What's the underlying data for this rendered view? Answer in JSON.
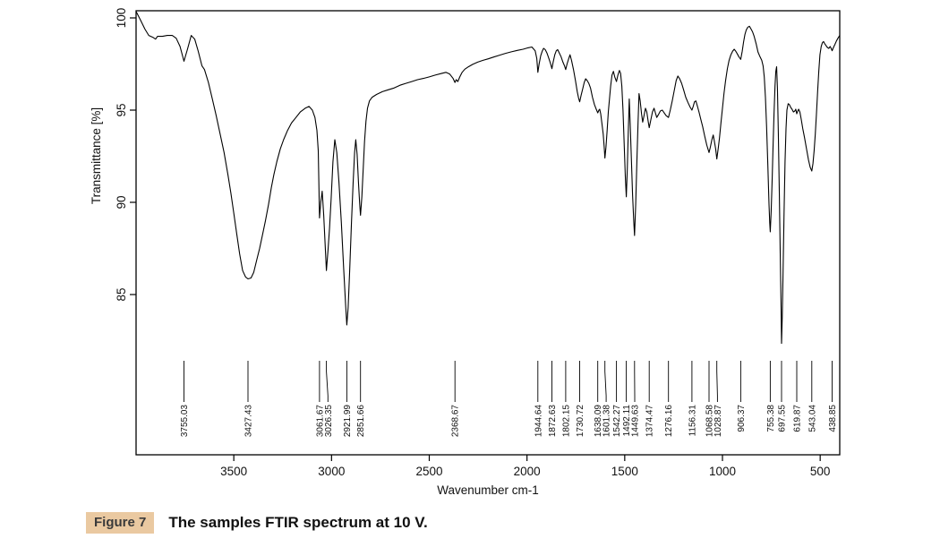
{
  "caption": {
    "figure_label": "Figure 7",
    "text": "The samples FTIR spectrum at 10 V."
  },
  "colors": {
    "line": "#000000",
    "tick_text": "#1a1a1a",
    "caption_badge_bg": "#eac9a1",
    "background": "#ffffff"
  },
  "chart_data": {
    "type": "line",
    "title": "",
    "xlabel": "Wavenumber cm-1",
    "ylabel": "Transmittance [%]",
    "x_ticks": [
      3500,
      3000,
      2500,
      2000,
      1500,
      1000,
      500
    ],
    "y_ticks": [
      85,
      90,
      95,
      100
    ],
    "x_range": [
      4000,
      400
    ],
    "y_range": [
      83,
      100.4
    ],
    "grid": false,
    "legend": "none",
    "peak_labels": [
      "3755.03",
      "3427.43",
      "3061.67",
      "3026.35",
      "2921.99",
      "2851.66",
      "2368.67",
      "1944.64",
      "1872.63",
      "1802.15",
      "1730.72",
      "1638.09",
      "1601.38",
      "1542.27",
      "1492.11",
      "1449.63",
      "1374.47",
      "1276.16",
      "1156.31",
      "1068.58",
      "1028.87",
      "906.37",
      "755.38",
      "697.55",
      "619.87",
      "543.04",
      "438.85"
    ],
    "peaks": [
      3755.03,
      3427.43,
      3061.67,
      3026.35,
      2921.99,
      2851.66,
      2368.67,
      1944.64,
      1872.63,
      1802.15,
      1730.72,
      1638.09,
      1601.38,
      1542.27,
      1492.11,
      1449.63,
      1374.47,
      1276.16,
      1156.31,
      1068.58,
      1028.87,
      906.37,
      755.38,
      697.55,
      619.87,
      543.04,
      438.85
    ],
    "curve": [
      [
        4000,
        100.35
      ],
      [
        3978,
        99.9
      ],
      [
        3955,
        99.4
      ],
      [
        3935,
        99.05
      ],
      [
        3915,
        98.95
      ],
      [
        3900,
        98.85
      ],
      [
        3890,
        99.0
      ],
      [
        3865,
        99.0
      ],
      [
        3840,
        99.05
      ],
      [
        3815,
        99.05
      ],
      [
        3795,
        98.9
      ],
      [
        3775,
        98.45
      ],
      [
        3755.03,
        97.65
      ],
      [
        3737,
        98.3
      ],
      [
        3718,
        99.05
      ],
      [
        3700,
        98.85
      ],
      [
        3682,
        98.2
      ],
      [
        3663,
        97.4
      ],
      [
        3650,
        97.2
      ],
      [
        3630,
        96.5
      ],
      [
        3610,
        95.6
      ],
      [
        3590,
        94.7
      ],
      [
        3570,
        93.7
      ],
      [
        3550,
        92.7
      ],
      [
        3530,
        91.5
      ],
      [
        3515,
        90.5
      ],
      [
        3500,
        89.4
      ],
      [
        3485,
        88.3
      ],
      [
        3470,
        87.2
      ],
      [
        3455,
        86.3
      ],
      [
        3440,
        85.95
      ],
      [
        3427.43,
        85.85
      ],
      [
        3412,
        85.9
      ],
      [
        3398,
        86.2
      ],
      [
        3382,
        86.9
      ],
      [
        3368,
        87.5
      ],
      [
        3352,
        88.3
      ],
      [
        3338,
        89.0
      ],
      [
        3322,
        89.9
      ],
      [
        3308,
        90.8
      ],
      [
        3295,
        91.5
      ],
      [
        3280,
        92.2
      ],
      [
        3262,
        92.9
      ],
      [
        3245,
        93.4
      ],
      [
        3225,
        93.9
      ],
      [
        3205,
        94.3
      ],
      [
        3182,
        94.6
      ],
      [
        3160,
        94.9
      ],
      [
        3135,
        95.1
      ],
      [
        3115,
        95.2
      ],
      [
        3098,
        95.0
      ],
      [
        3085,
        94.6
      ],
      [
        3075,
        93.9
      ],
      [
        3068,
        92.8
      ],
      [
        3061.67,
        89.15
      ],
      [
        3055,
        90.0
      ],
      [
        3048,
        90.6
      ],
      [
        3040,
        89.3
      ],
      [
        3033,
        87.8
      ],
      [
        3026.35,
        86.3
      ],
      [
        3018,
        87.4
      ],
      [
        3010,
        88.6
      ],
      [
        3002,
        90.2
      ],
      [
        2993,
        92.2
      ],
      [
        2983,
        93.4
      ],
      [
        2973,
        92.7
      ],
      [
        2962,
        91.1
      ],
      [
        2950,
        88.9
      ],
      [
        2938,
        86.4
      ],
      [
        2928,
        84.4
      ],
      [
        2921.99,
        83.35
      ],
      [
        2915,
        84.3
      ],
      [
        2907,
        86.3
      ],
      [
        2898,
        88.9
      ],
      [
        2890,
        91.0
      ],
      [
        2882,
        92.7
      ],
      [
        2876,
        93.4
      ],
      [
        2869,
        92.6
      ],
      [
        2862,
        91.0
      ],
      [
        2856,
        89.9
      ],
      [
        2851.66,
        89.3
      ],
      [
        2845,
        90.3
      ],
      [
        2838,
        91.8
      ],
      [
        2831,
        93.3
      ],
      [
        2824,
        94.4
      ],
      [
        2816,
        95.1
      ],
      [
        2806,
        95.5
      ],
      [
        2792,
        95.7
      ],
      [
        2770,
        95.85
      ],
      [
        2740,
        96.0
      ],
      [
        2710,
        96.1
      ],
      [
        2680,
        96.2
      ],
      [
        2650,
        96.35
      ],
      [
        2620,
        96.45
      ],
      [
        2590,
        96.55
      ],
      [
        2560,
        96.65
      ],
      [
        2530,
        96.72
      ],
      [
        2500,
        96.8
      ],
      [
        2470,
        96.9
      ],
      [
        2440,
        96.98
      ],
      [
        2415,
        97.05
      ],
      [
        2395,
        96.95
      ],
      [
        2378,
        96.72
      ],
      [
        2368.67,
        96.5
      ],
      [
        2362,
        96.65
      ],
      [
        2354,
        96.55
      ],
      [
        2344,
        96.8
      ],
      [
        2332,
        97.05
      ],
      [
        2318,
        97.22
      ],
      [
        2300,
        97.35
      ],
      [
        2278,
        97.48
      ],
      [
        2252,
        97.6
      ],
      [
        2225,
        97.7
      ],
      [
        2198,
        97.78
      ],
      [
        2170,
        97.88
      ],
      [
        2140,
        97.98
      ],
      [
        2110,
        98.08
      ],
      [
        2080,
        98.16
      ],
      [
        2050,
        98.24
      ],
      [
        2020,
        98.3
      ],
      [
        1995,
        98.38
      ],
      [
        1975,
        98.42
      ],
      [
        1958,
        98.22
      ],
      [
        1950,
        97.8
      ],
      [
        1944.64,
        97.05
      ],
      [
        1938,
        97.5
      ],
      [
        1930,
        97.95
      ],
      [
        1922,
        98.2
      ],
      [
        1915,
        98.35
      ],
      [
        1907,
        98.28
      ],
      [
        1898,
        98.1
      ],
      [
        1888,
        97.8
      ],
      [
        1879,
        97.5
      ],
      [
        1872.63,
        97.25
      ],
      [
        1866,
        97.6
      ],
      [
        1858,
        98.0
      ],
      [
        1850,
        98.22
      ],
      [
        1843,
        98.28
      ],
      [
        1835,
        98.1
      ],
      [
        1826,
        97.9
      ],
      [
        1816,
        97.6
      ],
      [
        1808,
        97.4
      ],
      [
        1802.15,
        97.2
      ],
      [
        1795,
        97.5
      ],
      [
        1788,
        97.75
      ],
      [
        1780,
        98.0
      ],
      [
        1772,
        97.7
      ],
      [
        1762,
        97.2
      ],
      [
        1752,
        96.6
      ],
      [
        1743,
        96.0
      ],
      [
        1736,
        95.65
      ],
      [
        1730.72,
        95.45
      ],
      [
        1723,
        95.8
      ],
      [
        1715,
        96.15
      ],
      [
        1707,
        96.5
      ],
      [
        1700,
        96.7
      ],
      [
        1692,
        96.6
      ],
      [
        1684,
        96.45
      ],
      [
        1675,
        96.2
      ],
      [
        1665,
        95.7
      ],
      [
        1655,
        95.3
      ],
      [
        1646,
        95.05
      ],
      [
        1638.09,
        94.85
      ],
      [
        1632,
        95.0
      ],
      [
        1628,
        95.05
      ],
      [
        1623,
        94.8
      ],
      [
        1617,
        94.3
      ],
      [
        1610,
        93.7
      ],
      [
        1605,
        93.0
      ],
      [
        1601.38,
        92.4
      ],
      [
        1596,
        93.0
      ],
      [
        1590,
        93.9
      ],
      [
        1584,
        94.9
      ],
      [
        1578,
        95.6
      ],
      [
        1572,
        96.3
      ],
      [
        1565,
        96.9
      ],
      [
        1558,
        97.1
      ],
      [
        1551,
        96.8
      ],
      [
        1542.27,
        96.55
      ],
      [
        1535,
        96.9
      ],
      [
        1527,
        97.15
      ],
      [
        1521,
        97.0
      ],
      [
        1515,
        96.3
      ],
      [
        1509,
        95.0
      ],
      [
        1503,
        93.2
      ],
      [
        1497,
        91.4
      ],
      [
        1492.11,
        90.3
      ],
      [
        1487,
        91.8
      ],
      [
        1482,
        93.8
      ],
      [
        1477,
        95.6
      ],
      [
        1472,
        94.3
      ],
      [
        1466,
        92.3
      ],
      [
        1460,
        90.4
      ],
      [
        1454,
        89.0
      ],
      [
        1449.63,
        88.2
      ],
      [
        1444,
        89.9
      ],
      [
        1438,
        92.2
      ],
      [
        1432,
        94.3
      ],
      [
        1427,
        95.9
      ],
      [
        1421,
        95.5
      ],
      [
        1414,
        94.8
      ],
      [
        1408,
        94.35
      ],
      [
        1401,
        94.7
      ],
      [
        1394,
        95.1
      ],
      [
        1387,
        94.9
      ],
      [
        1380,
        94.4
      ],
      [
        1374.47,
        94.05
      ],
      [
        1367,
        94.45
      ],
      [
        1358,
        94.9
      ],
      [
        1350,
        95.1
      ],
      [
        1343,
        94.85
      ],
      [
        1336,
        94.6
      ],
      [
        1328,
        94.75
      ],
      [
        1318,
        94.95
      ],
      [
        1308,
        95.0
      ],
      [
        1298,
        94.85
      ],
      [
        1288,
        94.7
      ],
      [
        1276.16,
        94.6
      ],
      [
        1267,
        95.0
      ],
      [
        1257,
        95.5
      ],
      [
        1246,
        96.1
      ],
      [
        1237,
        96.6
      ],
      [
        1228,
        96.85
      ],
      [
        1219,
        96.7
      ],
      [
        1209,
        96.45
      ],
      [
        1199,
        96.1
      ],
      [
        1188,
        95.7
      ],
      [
        1176,
        95.4
      ],
      [
        1165,
        95.15
      ],
      [
        1156.31,
        95.0
      ],
      [
        1150,
        95.2
      ],
      [
        1143,
        95.45
      ],
      [
        1136,
        95.5
      ],
      [
        1128,
        95.2
      ],
      [
        1120,
        94.9
      ],
      [
        1111,
        94.5
      ],
      [
        1101,
        94.1
      ],
      [
        1091,
        93.6
      ],
      [
        1080,
        93.1
      ],
      [
        1068.58,
        92.7
      ],
      [
        1062,
        93.0
      ],
      [
        1054,
        93.4
      ],
      [
        1047,
        93.65
      ],
      [
        1041,
        93.3
      ],
      [
        1035,
        92.9
      ],
      [
        1028.87,
        92.35
      ],
      [
        1022,
        92.9
      ],
      [
        1015,
        93.5
      ],
      [
        1008,
        94.3
      ],
      [
        1000,
        95.1
      ],
      [
        992,
        95.9
      ],
      [
        984,
        96.6
      ],
      [
        975,
        97.25
      ],
      [
        966,
        97.7
      ],
      [
        957,
        98.0
      ],
      [
        948,
        98.2
      ],
      [
        940,
        98.3
      ],
      [
        932,
        98.2
      ],
      [
        924,
        98.05
      ],
      [
        916,
        97.9
      ],
      [
        906.37,
        97.75
      ],
      [
        899,
        98.2
      ],
      [
        892,
        98.7
      ],
      [
        885,
        99.1
      ],
      [
        878,
        99.35
      ],
      [
        870,
        99.5
      ],
      [
        862,
        99.55
      ],
      [
        854,
        99.4
      ],
      [
        846,
        99.25
      ],
      [
        838,
        99.0
      ],
      [
        828,
        98.6
      ],
      [
        818,
        98.15
      ],
      [
        808,
        97.9
      ],
      [
        799,
        97.7
      ],
      [
        792,
        97.4
      ],
      [
        786,
        96.8
      ],
      [
        780,
        95.7
      ],
      [
        774,
        94.1
      ],
      [
        768,
        92.0
      ],
      [
        762,
        89.9
      ],
      [
        758,
        88.9
      ],
      [
        755.38,
        88.4
      ],
      [
        751,
        89.5
      ],
      [
        746,
        91.2
      ],
      [
        741,
        93.0
      ],
      [
        736,
        94.8
      ],
      [
        731,
        96.3
      ],
      [
        727,
        97.1
      ],
      [
        723,
        97.35
      ],
      [
        719,
        96.2
      ],
      [
        714,
        93.8
      ],
      [
        709,
        90.6
      ],
      [
        704,
        87.0
      ],
      [
        700,
        84.3
      ],
      [
        697.55,
        82.35
      ],
      [
        694,
        83.8
      ],
      [
        690,
        86.2
      ],
      [
        685,
        89.4
      ],
      [
        680,
        92.2
      ],
      [
        675,
        94.0
      ],
      [
        670,
        95.0
      ],
      [
        664,
        95.35
      ],
      [
        658,
        95.3
      ],
      [
        651,
        95.15
      ],
      [
        644,
        95.05
      ],
      [
        637,
        94.9
      ],
      [
        630,
        94.95
      ],
      [
        625,
        95.05
      ],
      [
        619.87,
        94.8
      ],
      [
        615,
        94.95
      ],
      [
        610,
        95.05
      ],
      [
        604,
        94.9
      ],
      [
        597,
        94.5
      ],
      [
        589,
        94.0
      ],
      [
        580,
        93.5
      ],
      [
        570,
        92.9
      ],
      [
        560,
        92.3
      ],
      [
        551,
        91.9
      ],
      [
        543.04,
        91.7
      ],
      [
        537,
        92.1
      ],
      [
        531,
        92.8
      ],
      [
        525,
        93.7
      ],
      [
        519,
        94.8
      ],
      [
        513,
        96.0
      ],
      [
        507,
        97.1
      ],
      [
        501,
        98.0
      ],
      [
        495,
        98.45
      ],
      [
        489,
        98.65
      ],
      [
        483,
        98.72
      ],
      [
        477,
        98.6
      ],
      [
        470,
        98.5
      ],
      [
        463,
        98.4
      ],
      [
        456,
        98.35
      ],
      [
        449,
        98.45
      ],
      [
        444,
        98.35
      ],
      [
        438.85,
        98.22
      ],
      [
        432,
        98.4
      ],
      [
        425,
        98.55
      ],
      [
        417,
        98.75
      ],
      [
        409,
        98.9
      ],
      [
        400,
        99.05
      ]
    ]
  }
}
